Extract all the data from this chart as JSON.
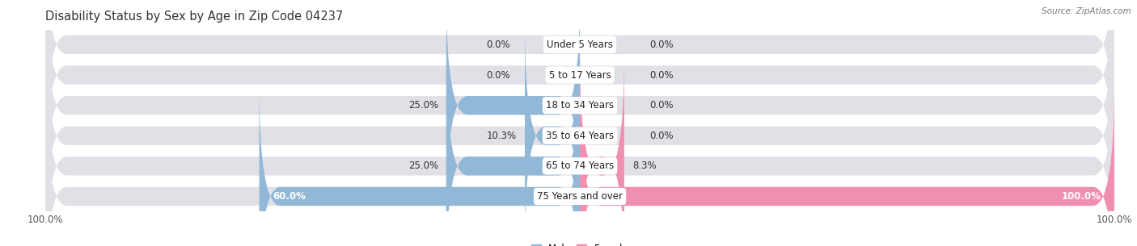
{
  "title": "Disability Status by Sex by Age in Zip Code 04237",
  "source": "Source: ZipAtlas.com",
  "categories": [
    "Under 5 Years",
    "5 to 17 Years",
    "18 to 34 Years",
    "35 to 64 Years",
    "65 to 74 Years",
    "75 Years and over"
  ],
  "male_values": [
    0.0,
    0.0,
    25.0,
    10.3,
    25.0,
    60.0
  ],
  "female_values": [
    0.0,
    0.0,
    0.0,
    0.0,
    8.3,
    100.0
  ],
  "male_color": "#92b8d8",
  "female_color": "#f090b0",
  "bar_bg_color": "#e0e0e6",
  "bar_height": 0.62,
  "xlim": 100.0,
  "title_fontsize": 10.5,
  "label_fontsize": 8.5,
  "tick_fontsize": 8.5,
  "fig_bg_color": "#ffffff"
}
